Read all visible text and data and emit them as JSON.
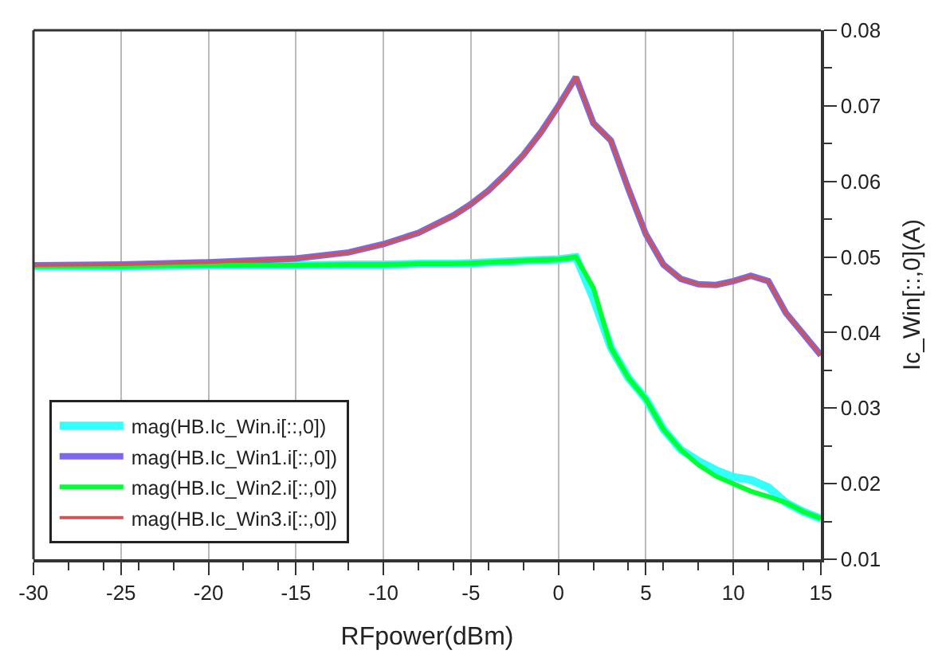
{
  "chart_data": {
    "type": "line",
    "xlabel": "RFpower(dBm)",
    "ylabel": "Ic_Win[::,0](A)",
    "x": [
      -30,
      -25,
      -20,
      -15,
      -12,
      -10,
      -8,
      -6,
      -5,
      -4,
      -3,
      -2,
      -1,
      0,
      1,
      2,
      3,
      4,
      5,
      6,
      7,
      8,
      9,
      10,
      11,
      12,
      13,
      14,
      15
    ],
    "series": [
      {
        "name": "mag(HB.Ic_Win.i[::,0])",
        "color": "#33ffff",
        "values": [
          0.0488,
          0.0488,
          0.0489,
          0.0489,
          0.049,
          0.049,
          0.0491,
          0.0491,
          0.0492,
          0.0493,
          0.0494,
          0.0495,
          0.0496,
          0.0497,
          0.05,
          0.0445,
          0.038,
          0.034,
          0.0312,
          0.0272,
          0.0245,
          0.023,
          0.0218,
          0.0209,
          0.0205,
          0.0195,
          0.0175,
          0.0163,
          0.0154
        ]
      },
      {
        "name": "mag(HB.Ic_Win1.i[::,0])",
        "color": "#7b68ee",
        "values": [
          0.0489,
          0.049,
          0.0493,
          0.0498,
          0.0506,
          0.0517,
          0.0532,
          0.0555,
          0.057,
          0.0588,
          0.061,
          0.0635,
          0.0665,
          0.07,
          0.0738,
          0.0677,
          0.0654,
          0.059,
          0.053,
          0.049,
          0.0471,
          0.0464,
          0.0463,
          0.0468,
          0.0475,
          0.0468,
          0.0426,
          0.0398,
          0.037
        ]
      },
      {
        "name": "mag(HB.Ic_Win2.i[::,0])",
        "color": "#00ff33",
        "values": [
          0.0488,
          0.0488,
          0.0489,
          0.0489,
          0.049,
          0.049,
          0.0491,
          0.0491,
          0.0492,
          0.0493,
          0.0494,
          0.0495,
          0.0496,
          0.0497,
          0.05,
          0.0459,
          0.038,
          0.034,
          0.0312,
          0.0272,
          0.0245,
          0.0225,
          0.021,
          0.02,
          0.019,
          0.0183,
          0.0175,
          0.0163,
          0.0154
        ]
      },
      {
        "name": "mag(HB.Ic_Win3.i[::,0])",
        "color": "#cc5555",
        "values": [
          0.0489,
          0.049,
          0.0493,
          0.0498,
          0.0506,
          0.0517,
          0.0532,
          0.0555,
          0.057,
          0.0588,
          0.061,
          0.0635,
          0.0665,
          0.07,
          0.0738,
          0.0677,
          0.0654,
          0.059,
          0.053,
          0.049,
          0.0471,
          0.0464,
          0.0463,
          0.0468,
          0.0475,
          0.0468,
          0.0426,
          0.0398,
          0.037
        ]
      }
    ],
    "xlim": [
      -30,
      15
    ],
    "xticks": [
      -30,
      -25,
      -20,
      -15,
      -10,
      -5,
      0,
      5,
      10,
      15
    ],
    "ylim": [
      0.01,
      0.08
    ],
    "yticks": [
      0.01,
      0.02,
      0.03,
      0.04,
      0.05,
      0.06,
      0.07,
      0.08
    ],
    "grid": "x",
    "legend": "bottom left",
    "marker": "none",
    "line_style": "solid"
  }
}
